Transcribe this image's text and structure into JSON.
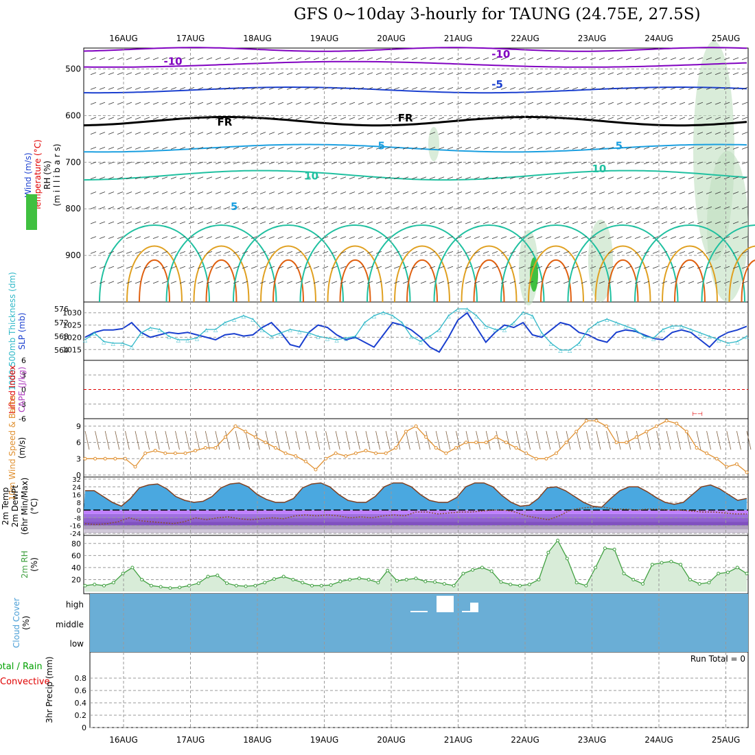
{
  "title": "GFS 0~10day 3-hourly for TAUNG (24.75E, 27.5S)",
  "colors": {
    "temp_cold": "#8000c0",
    "temp_mid": "#1a3fcf",
    "temp_warm": "#1a9fe0",
    "temp_teal": "#1fc0a0",
    "temp_orange": "#e0a020",
    "temp_dark_orange": "#e06010",
    "temp_magenta": "#e0108a",
    "freezing": "#000000",
    "slp": "#1a3fcf",
    "thickness": "#30b8c8",
    "lifted_index": "#e00000",
    "wind_speed": "#e09030",
    "dewpoint": "#8a5030",
    "rh_fill": "#40a040",
    "cloud": "#6aaed6",
    "precip_total": "#00a000",
    "precip_conv": "#e00000"
  },
  "chart_data": {
    "type": "line",
    "time_axis_labels": [
      "16AUG",
      "17AUG",
      "18AUG",
      "19AUG",
      "20AUG",
      "21AUG",
      "22AUG",
      "23AUG",
      "24AUG",
      "25AUG"
    ],
    "panels": [
      {
        "id": "upper-air",
        "ylabels": [
          "Wind (m/s)",
          "Temperature (°C)",
          "RH (%)",
          "(m i l l i b a r s)"
        ],
        "y_ticks": [
          500,
          600,
          700,
          800,
          900
        ],
        "ylim": [
          1000,
          450
        ],
        "contour_labels": [
          {
            "text": "-10",
            "x": 0.6,
            "y": 484
          },
          {
            "text": "-10",
            "x": 5.5,
            "y": 468
          },
          {
            "text": "-5",
            "x": 5.5,
            "y": 533
          },
          {
            "text": "FR",
            "x": 1.4,
            "y": 614
          },
          {
            "text": "FR",
            "x": 4.1,
            "y": 605
          },
          {
            "text": "5",
            "x": 3.8,
            "y": 665
          },
          {
            "text": "5",
            "x": 7.35,
            "y": 665
          },
          {
            "text": "10",
            "x": 2.7,
            "y": 730
          },
          {
            "text": "10",
            "x": 7.0,
            "y": 714
          },
          {
            "text": "5",
            "x": 1.6,
            "y": 795
          }
        ]
      },
      {
        "id": "thickness-slp",
        "ylabels": [
          "1000-500mb Thickness (dm)",
          "SLP (mb)"
        ],
        "y_ticks_left": [
          564,
          568,
          572,
          576
        ],
        "y_ticks_right": [
          1015,
          1020,
          1025,
          1030
        ],
        "series": [
          {
            "name": "SLP (mb)",
            "values": [
              1020,
              1022,
              1023,
              1023,
              1023.5,
              1026,
              1022,
              1020,
              1021,
              1022,
              1021.5,
              1022,
              1021,
              1020,
              1019,
              1021,
              1021.5,
              1020.5,
              1021,
              1024,
              1026,
              1022,
              1017,
              1016,
              1022,
              1025,
              1024,
              1021,
              1019,
              1020,
              1018,
              1016,
              1021,
              1026,
              1025,
              1023,
              1020,
              1016,
              1014,
              1020,
              1027,
              1030,
              1024,
              1018,
              1022,
              1025,
              1024,
              1026,
              1021,
              1020,
              1023,
              1026,
              1025,
              1022,
              1021,
              1019,
              1018,
              1022,
              1023,
              1022.5,
              1021,
              1019.5,
              1019,
              1022,
              1023,
              1022,
              1019,
              1016,
              1020,
              1022,
              1023,
              1024.5
            ]
          },
          {
            "name": "Thickness (dm)",
            "values": [
              567,
              569,
              566.5,
              566,
              566,
              565,
              569,
              570.5,
              570,
              568,
              567,
              567,
              567.5,
              570,
              570,
              572,
              573,
              574,
              573,
              570,
              568,
              569,
              570,
              569.5,
              569,
              568,
              567.5,
              567,
              567.5,
              568,
              572,
              574,
              575,
              574,
              572,
              568,
              566.5,
              568,
              570,
              574,
              576,
              576,
              574,
              571,
              570,
              570,
              572,
              575,
              574,
              569,
              566,
              564,
              564,
              566,
              570,
              572,
              573,
              572,
              571,
              570,
              568,
              567.5,
              570,
              571,
              571,
              570,
              569,
              568,
              567,
              566,
              566.5,
              568
            ]
          }
        ]
      },
      {
        "id": "cape-li",
        "ylabels": [
          "Lifted Index",
          "CAPE (J/kg)"
        ],
        "y_ticks": [
          6,
          3,
          0,
          -3,
          -6
        ],
        "ylim": [
          -6,
          6
        ],
        "series": [
          {
            "name": "Lifted Index",
            "values": []
          }
        ]
      },
      {
        "id": "wind-10m",
        "ylabels": [
          "10m Wind Speed & Barbs",
          "(m/s)"
        ],
        "y_ticks": [
          0,
          3,
          6,
          9
        ],
        "ylim": [
          0,
          10
        ],
        "series": [
          {
            "name": "10m Wind Speed",
            "values": [
              3,
              3,
              3,
              3,
              3,
              1.5,
              4,
              4.5,
              4,
              4,
              4,
              4.5,
              5,
              5,
              7,
              9,
              8,
              7,
              6,
              5,
              4,
              3.5,
              2.5,
              1,
              3,
              4,
              3.5,
              4,
              4.5,
              4,
              4,
              5,
              8,
              9,
              7,
              5,
              4,
              5,
              6,
              6,
              6,
              7,
              6,
              5,
              4,
              3,
              3,
              4,
              6,
              8,
              10,
              10,
              9,
              6,
              6,
              7,
              8,
              9,
              10,
              9.5,
              8,
              5,
              4,
              3,
              1.5,
              2,
              0.5
            ]
          }
        ]
      },
      {
        "id": "temp-2m",
        "ylabels": [
          "2m Temp",
          "2m DewPt",
          "(6hr Min/Max)",
          "(°C)"
        ],
        "y_ticks": [
          32,
          24,
          16,
          8,
          0,
          -8,
          -16,
          -24
        ],
        "ylim": [
          -24,
          32
        ],
        "series": [
          {
            "name": "2m Temp",
            "values": [
              20,
              20,
              14,
              8,
              4,
              12,
              23,
              26,
              27,
              22,
              14,
              10,
              8,
              9,
              14,
              23,
              27,
              28,
              24,
              16,
              11,
              8,
              8,
              12,
              23,
              27,
              28,
              24,
              16,
              10,
              8,
              8,
              14,
              24,
              28,
              28,
              24,
              16,
              10,
              8,
              8,
              13,
              24,
              28,
              28,
              24,
              15,
              8,
              4,
              5,
              12,
              23,
              24,
              20,
              14,
              8,
              4,
              3,
              12,
              20,
              24,
              24,
              19,
              13,
              8,
              6,
              8,
              16,
              24,
              26,
              22,
              16,
              10,
              12
            ]
          },
          {
            "name": "2m DewPt",
            "values": [
              -14,
              -15,
              -14,
              -12,
              -8,
              -11,
              -12,
              -13,
              -14,
              -12,
              -8,
              -10,
              -8,
              -7,
              -9,
              -10,
              -9,
              -8,
              -9,
              -6,
              -5,
              -6,
              -5,
              -6,
              -8,
              -7,
              -8,
              -6,
              -5,
              -6,
              -2,
              -2,
              -4,
              -3,
              -2,
              -2,
              -1,
              0,
              0,
              -2,
              -6,
              -8,
              -10,
              -6,
              0,
              2,
              3,
              3,
              1,
              1,
              0,
              1,
              1,
              0,
              0,
              -1,
              -2,
              -2,
              -3,
              -4,
              -4
            ]
          }
        ]
      },
      {
        "id": "rh-2m",
        "ylabels": [
          "2m RH",
          "(%)"
        ],
        "y_ticks": [
          20,
          40,
          60,
          80
        ],
        "ylim": [
          0,
          90
        ],
        "series": [
          {
            "name": "2m RH",
            "values": [
              10,
              12,
              10,
              15,
              30,
              40,
              20,
              10,
              8,
              6,
              7,
              10,
              14,
              25,
              27,
              14,
              10,
              9,
              10,
              15,
              21,
              25,
              20,
              15,
              10,
              10,
              11,
              17,
              20,
              22,
              20,
              15,
              35,
              18,
              20,
              22,
              17,
              16,
              13,
              10,
              30,
              36,
              40,
              34,
              16,
              12,
              10,
              12,
              20,
              65,
              85,
              55,
              15,
              10,
              40,
              72,
              70,
              30,
              20,
              13,
              45,
              48,
              50,
              45,
              20,
              13,
              15,
              30,
              32,
              40,
              30
            ]
          }
        ]
      },
      {
        "id": "cloud-cover",
        "ylabels": [
          "Cloud Cover",
          "(%)"
        ],
        "y_ticks": [
          "high",
          "middle",
          "low"
        ]
      },
      {
        "id": "precip",
        "ylabels": [
          "Total / Rain",
          "Convective",
          "3hr Precip (mm)"
        ],
        "y_ticks": [
          0,
          0.2,
          0.4,
          0.6,
          0.8
        ],
        "ylim": [
          0,
          1
        ],
        "run_total_label": "Run Total = 0"
      }
    ]
  }
}
